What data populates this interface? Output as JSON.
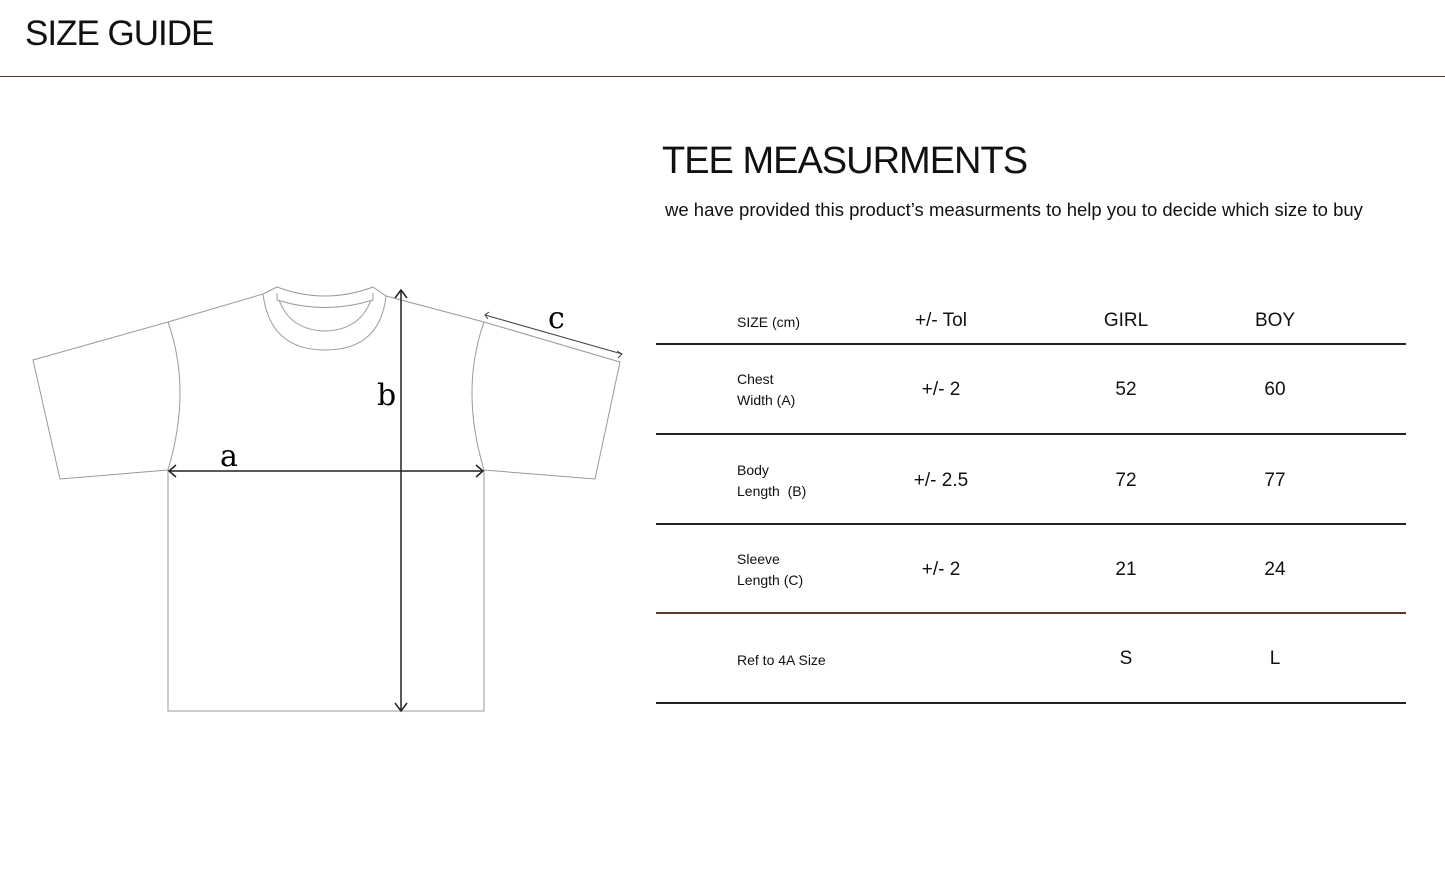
{
  "header": {
    "title": "SIZE GUIDE"
  },
  "section": {
    "title": "TEE MEASURMENTS",
    "subtitle": "we have provided this product’s measurments to help you to decide which size to buy"
  },
  "diagram": {
    "labels": {
      "a": "a",
      "b": "b",
      "c": "c"
    }
  },
  "table": {
    "headers": [
      "SIZE (cm)",
      "+/- Tol",
      "GIRL",
      "BOY"
    ],
    "rows": [
      {
        "label1": "Chest",
        "label2": "Width (A)",
        "tol": "+/- 2",
        "girl": "52",
        "boy": "60"
      },
      {
        "label1": "Body",
        "label2": "Length  (B)",
        "tol": "+/- 2.5",
        "girl": "72",
        "boy": "77"
      },
      {
        "label1": "Sleeve",
        "label2": "Length (C)",
        "tol": "+/- 2",
        "girl": "21",
        "boy": "24"
      },
      {
        "label1": "Ref to 4A Size",
        "label2": "",
        "tol": "",
        "girl": "S",
        "boy": "L"
      }
    ],
    "colors": {
      "divider": "#222222",
      "accent_divider": "#5a3a2e"
    }
  }
}
